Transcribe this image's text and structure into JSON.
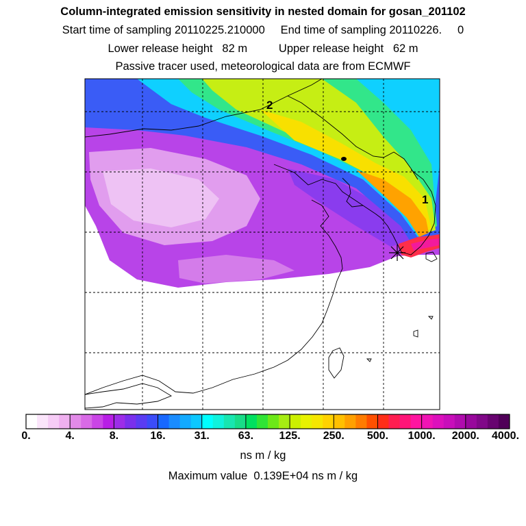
{
  "title": "Column-integrated emission sensitivity in nested domain for gosan_201102",
  "sampling_line": "Start time of sampling 20110225.210000     End time of sampling 20110226.     0",
  "release_line": "Lower release height   82 m          Upper release height   62 m",
  "tracer_line": "Passive tracer used, meteorological data are from ECMWF",
  "map": {
    "trajectory_labels": [
      "1",
      "2"
    ],
    "release_marker": "release-site-star-icon",
    "grid": "dashed"
  },
  "colorbar": {
    "tick_labels": [
      "0.",
      "4.",
      "8.",
      "16.",
      "31.",
      "63.",
      "125.",
      "250.",
      "500.",
      "1000.",
      "2000.",
      "4000."
    ],
    "colors": [
      "#ffffff",
      "#fbe5fb",
      "#f6ccf6",
      "#efb0ef",
      "#e28ae8",
      "#d86ae6",
      "#ca45e6",
      "#b81ee6",
      "#9d2de8",
      "#7a30ec",
      "#5a3cf2",
      "#3b4cf8",
      "#1868ff",
      "#1a8cff",
      "#12aaff",
      "#0cc8ff",
      "#00ffff",
      "#10f2dc",
      "#18e6b0",
      "#18dc88",
      "#00e060",
      "#30e436",
      "#6ce818",
      "#a6ec12",
      "#ccf000",
      "#e8f200",
      "#f6e600",
      "#ffd200",
      "#ffc000",
      "#ffa000",
      "#ff7c00",
      "#ff5000",
      "#ff2e18",
      "#ff1e50",
      "#ff1478",
      "#ff14a0",
      "#f014b4",
      "#dc10bc",
      "#c80eba",
      "#b00cae",
      "#98089c",
      "#800888",
      "#680470",
      "#500058"
    ]
  },
  "units": "ns m / kg",
  "maximum_line": "Maximum value  0.139E+04 ns m / kg"
}
